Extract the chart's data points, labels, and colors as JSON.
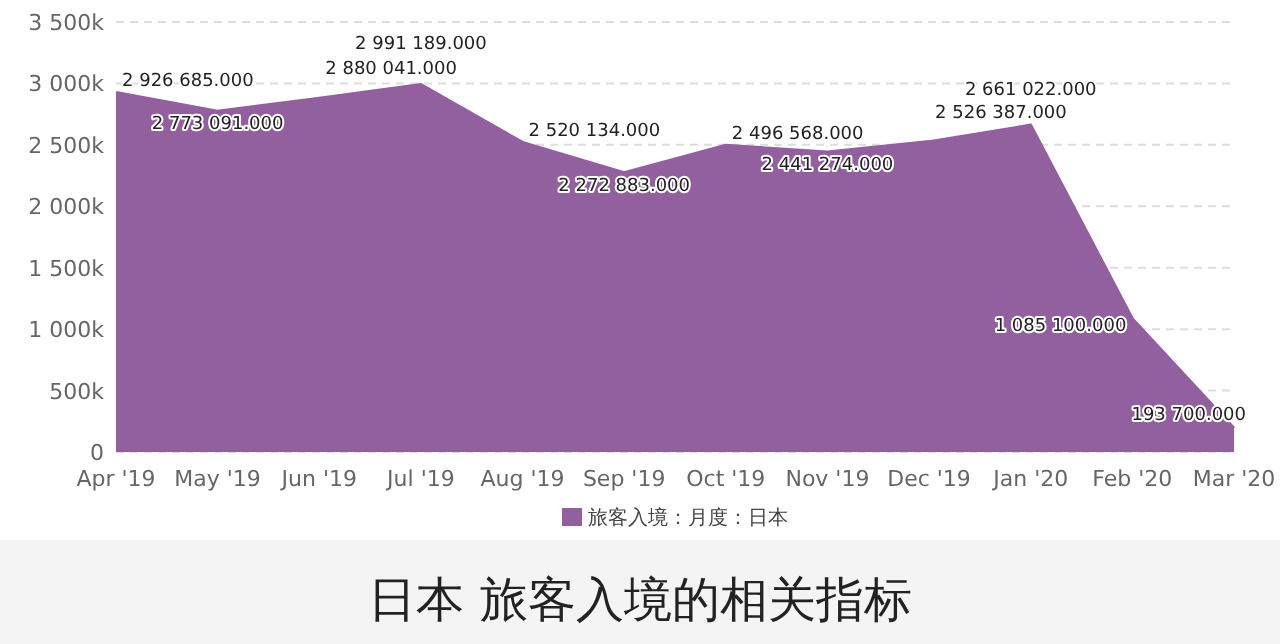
{
  "chart_data": {
    "type": "area",
    "title": "日本 旅客入境的相关指标",
    "categories": [
      "Apr '19",
      "May '19",
      "Jun '19",
      "Jul '19",
      "Aug '19",
      "Sep '19",
      "Oct '19",
      "Nov '19",
      "Dec '19",
      "Jan '20",
      "Feb '20",
      "Mar '20"
    ],
    "series": [
      {
        "name": "旅客入境：月度：日本",
        "color": "#93609f",
        "values": [
          2926685,
          2773091,
          2880041,
          2991189,
          2520134,
          2272883,
          2496568,
          2441274,
          2526387,
          2661022,
          1085100,
          193700
        ],
        "value_labels": [
          "2 926 685.000",
          "2 773 091.000",
          "2 880 041.000",
          "2 991 189.000",
          "2 520 134.000",
          "2 272 883.000",
          "2 496 568.000",
          "2 441 274.000",
          "2 526 387.000",
          "2 661 022.000",
          "1 085 100.000",
          "193 700.000"
        ]
      }
    ],
    "ylim": [
      0,
      3500000
    ],
    "yticks": [
      0,
      {
        "value": 500000,
        "label": "500k"
      },
      {
        "value": 1000000,
        "label": "1 000k"
      },
      {
        "value": 1500000,
        "label": "1 500k"
      },
      {
        "value": 2000000,
        "label": "2 000k"
      },
      {
        "value": 2500000,
        "label": "2 500k"
      },
      {
        "value": 3000000,
        "label": "3 000k"
      },
      {
        "value": 3500000,
        "label": "3 500k"
      }
    ],
    "grid": "y",
    "legend": "bottom"
  }
}
